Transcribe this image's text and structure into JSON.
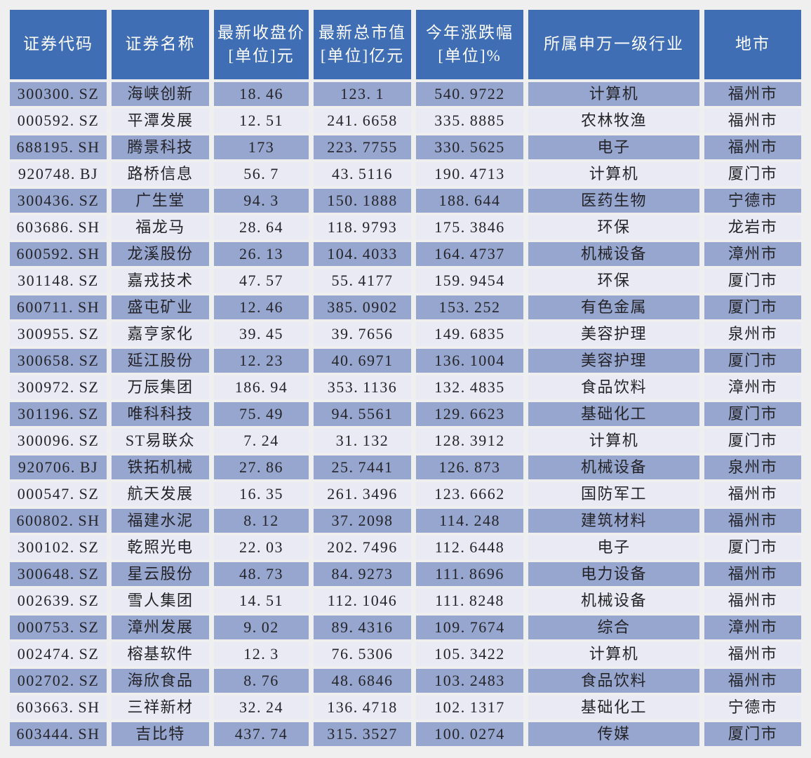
{
  "table": {
    "columns": [
      {
        "id": "code",
        "label": "证券代码"
      },
      {
        "id": "name",
        "label": "证券名称"
      },
      {
        "id": "close_price",
        "label": "最新收盘价\n[单位]元"
      },
      {
        "id": "market_cap",
        "label": "最新总市值\n[单位]亿元"
      },
      {
        "id": "ytd_change",
        "label": "今年涨跌幅\n[单位]%"
      },
      {
        "id": "industry",
        "label": "所属申万一级行业"
      },
      {
        "id": "city",
        "label": "地市"
      }
    ],
    "rows": [
      [
        "300300.SZ",
        "海峡创新",
        "18.46",
        "123.1",
        "540.9722",
        "计算机",
        "福州市"
      ],
      [
        "000592.SZ",
        "平潭发展",
        "12.51",
        "241.6658",
        "335.8885",
        "农林牧渔",
        "福州市"
      ],
      [
        "688195.SH",
        "腾景科技",
        "173",
        "223.7755",
        "330.5625",
        "电子",
        "福州市"
      ],
      [
        "920748.BJ",
        "路桥信息",
        "56.7",
        "43.5116",
        "190.4713",
        "计算机",
        "厦门市"
      ],
      [
        "300436.SZ",
        "广生堂",
        "94.3",
        "150.1888",
        "188.644",
        "医药生物",
        "宁德市"
      ],
      [
        "603686.SH",
        "福龙马",
        "28.64",
        "118.9793",
        "175.3846",
        "环保",
        "龙岩市"
      ],
      [
        "600592.SH",
        "龙溪股份",
        "26.13",
        "104.4033",
        "164.4737",
        "机械设备",
        "漳州市"
      ],
      [
        "301148.SZ",
        "嘉戎技术",
        "47.57",
        "55.4177",
        "159.9454",
        "环保",
        "厦门市"
      ],
      [
        "600711.SH",
        "盛屯矿业",
        "12.46",
        "385.0902",
        "153.252",
        "有色金属",
        "厦门市"
      ],
      [
        "300955.SZ",
        "嘉亨家化",
        "39.45",
        "39.7656",
        "149.6835",
        "美容护理",
        "泉州市"
      ],
      [
        "300658.SZ",
        "延江股份",
        "12.23",
        "40.6971",
        "136.1004",
        "美容护理",
        "厦门市"
      ],
      [
        "300972.SZ",
        "万辰集团",
        "186.94",
        "353.1136",
        "132.4835",
        "食品饮料",
        "漳州市"
      ],
      [
        "301196.SZ",
        "唯科科技",
        "75.49",
        "94.5561",
        "129.6623",
        "基础化工",
        "厦门市"
      ],
      [
        "300096.SZ",
        "ST易联众",
        "7.24",
        "31.132",
        "128.3912",
        "计算机",
        "厦门市"
      ],
      [
        "920706.BJ",
        "铁拓机械",
        "27.86",
        "25.7441",
        "126.873",
        "机械设备",
        "泉州市"
      ],
      [
        "000547.SZ",
        "航天发展",
        "16.35",
        "261.3496",
        "123.6662",
        "国防军工",
        "福州市"
      ],
      [
        "600802.SH",
        "福建水泥",
        "8.12",
        "37.2098",
        "114.248",
        "建筑材料",
        "福州市"
      ],
      [
        "300102.SZ",
        "乾照光电",
        "22.03",
        "202.7496",
        "112.6448",
        "电子",
        "厦门市"
      ],
      [
        "300648.SZ",
        "星云股份",
        "48.73",
        "84.9273",
        "111.8696",
        "电力设备",
        "福州市"
      ],
      [
        "002639.SZ",
        "雪人集团",
        "14.51",
        "112.1046",
        "111.8248",
        "机械设备",
        "福州市"
      ],
      [
        "000753.SZ",
        "漳州发展",
        "9.02",
        "89.4316",
        "109.7674",
        "综合",
        "漳州市"
      ],
      [
        "002474.SZ",
        "榕基软件",
        "12.3",
        "76.5306",
        "105.3422",
        "计算机",
        "福州市"
      ],
      [
        "002702.SZ",
        "海欣食品",
        "8.76",
        "48.6846",
        "103.2483",
        "食品饮料",
        "福州市"
      ],
      [
        "603663.SH",
        "三祥新材",
        "32.24",
        "136.4718",
        "102.1317",
        "基础化工",
        "宁德市"
      ],
      [
        "603444.SH",
        "吉比特",
        "437.74",
        "315.3527",
        "100.0274",
        "传媒",
        "厦门市"
      ]
    ],
    "colors": {
      "header_bg": "#3f6eb5",
      "header_text": "#ffffff",
      "row_odd_bg": "#97a6cf",
      "row_even_bg": "#e9eaf3",
      "cell_text": "#242428",
      "page_bg": "#efeff0"
    }
  }
}
